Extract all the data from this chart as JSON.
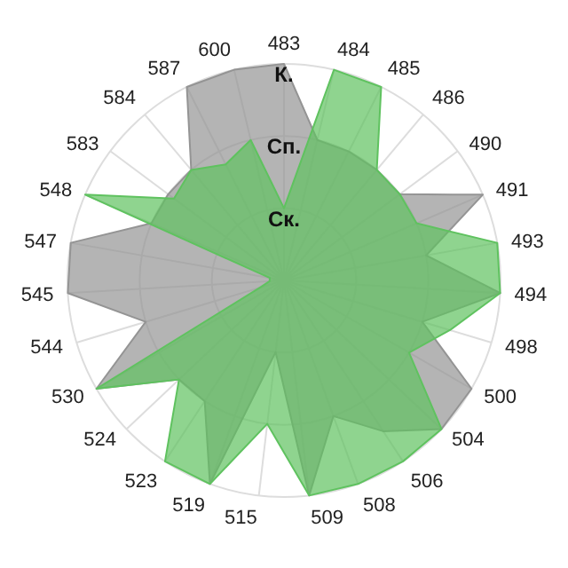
{
  "chart_data": {
    "type": "radar",
    "categories": [
      "483",
      "484",
      "485",
      "486",
      "490",
      "491",
      "493",
      "494",
      "498",
      "500",
      "504",
      "506",
      "508",
      "509",
      "515",
      "519",
      "523",
      "524",
      "530",
      "544",
      "545",
      "547",
      "548",
      "583",
      "584",
      "587",
      "600"
    ],
    "series": [
      {
        "color": "#949494",
        "values": [
          3,
          2,
          2,
          2,
          2,
          3,
          2,
          3,
          2,
          3,
          3,
          2.5,
          2,
          3,
          1,
          3,
          2,
          2,
          3,
          2,
          3,
          3,
          2,
          2,
          2,
          3,
          3
        ]
      },
      {
        "color": "#5fc25f",
        "values": [
          1,
          3,
          3,
          2,
          2,
          2,
          3,
          3,
          2.4,
          2,
          3,
          3,
          3,
          3,
          2,
          3,
          3,
          2,
          3,
          0.35,
          0.2,
          0.2,
          3,
          1.9,
          2,
          1.8,
          2
        ]
      }
    ],
    "ylim": [
      0,
      3
    ],
    "yticks": [
      {
        "value": 1,
        "label": "Ск."
      },
      {
        "value": 2,
        "label": "Сп."
      },
      {
        "value": 3,
        "label": "К."
      }
    ],
    "grid": true,
    "legend": false
  }
}
